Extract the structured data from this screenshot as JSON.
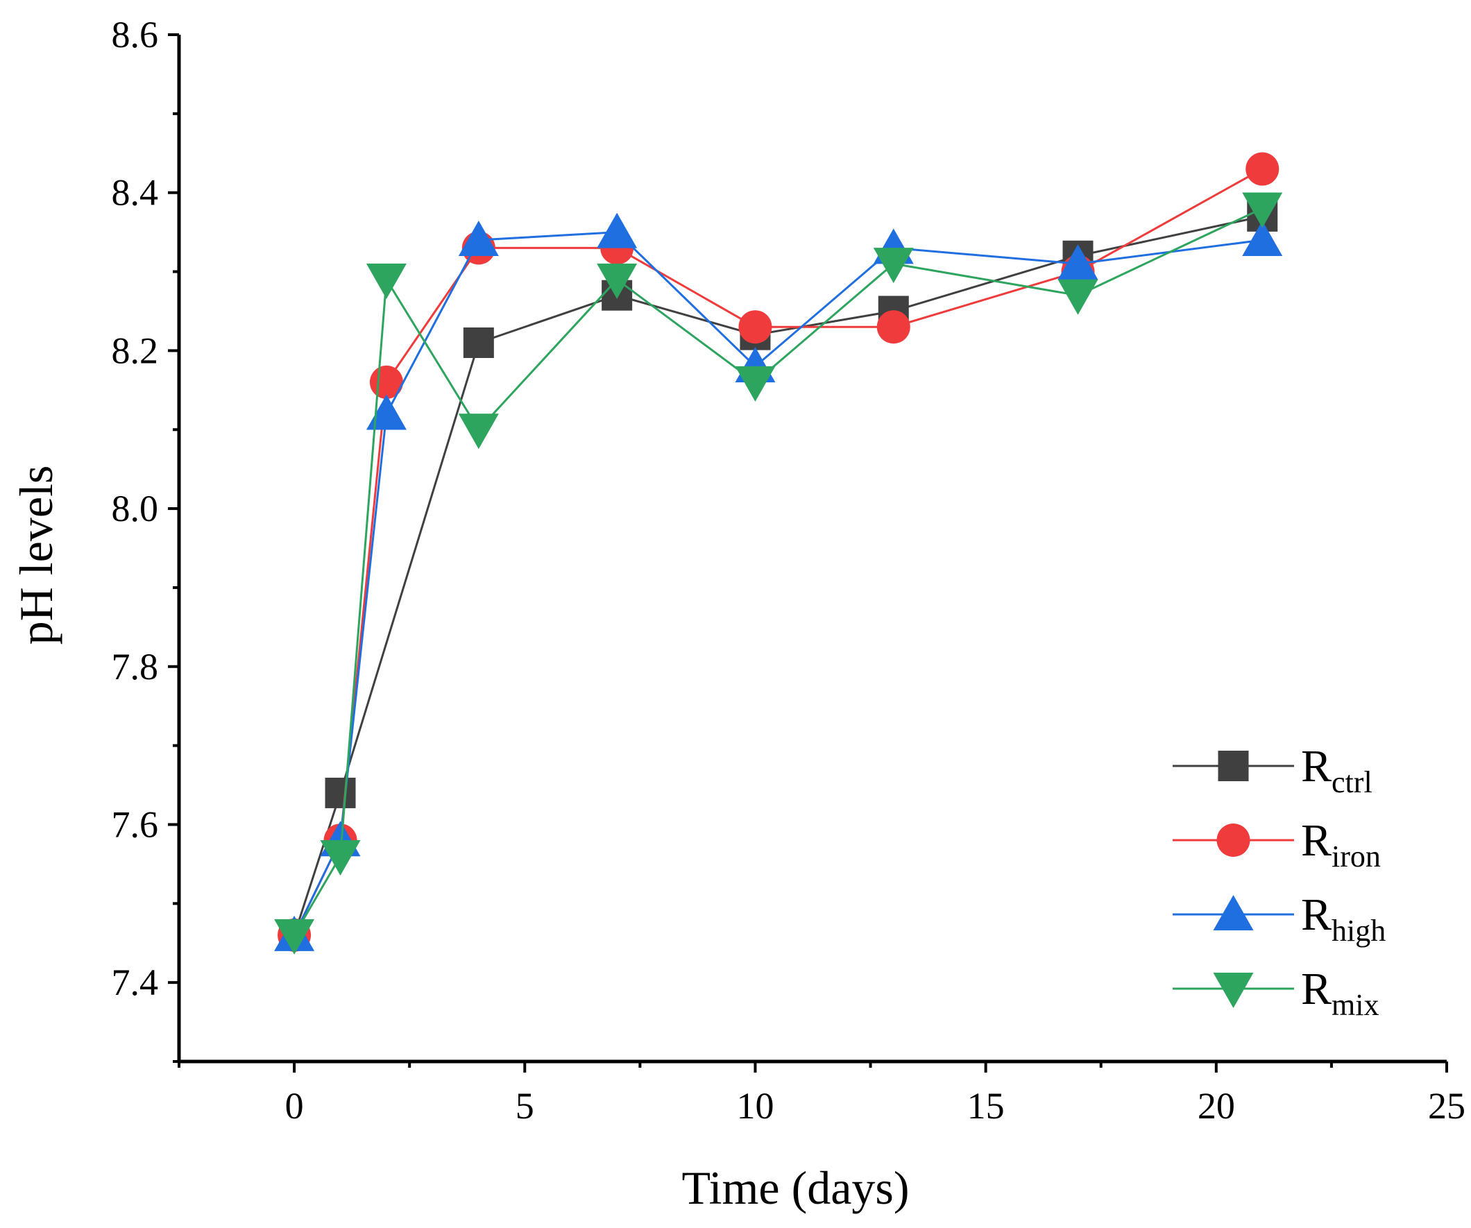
{
  "chart_data": {
    "type": "line",
    "title": "",
    "xlabel": "Time (days)",
    "ylabel": "pH levels",
    "xlim": [
      -2.5,
      25
    ],
    "ylim": [
      7.3,
      8.6
    ],
    "xticks": [
      0,
      5,
      10,
      15,
      20,
      25
    ],
    "xtick_labels": [
      "0",
      "5",
      "10",
      "15",
      "20",
      "25"
    ],
    "yticks": [
      7.4,
      7.6,
      7.8,
      8.0,
      8.2,
      8.4,
      8.6
    ],
    "ytick_labels": [
      "7.4",
      "7.6",
      "7.8",
      "8.0",
      "8.2",
      "8.4",
      "8.6"
    ],
    "grid": false,
    "legend_position": "bottom-right",
    "x": [
      0,
      1,
      2,
      4,
      7,
      10,
      13,
      17,
      21
    ],
    "series": [
      {
        "name": "R",
        "name_sub": "ctrl",
        "marker": "square",
        "color": "#404040",
        "line_color": "#404040",
        "x": [
          0,
          1,
          4,
          7,
          10,
          13,
          17,
          21
        ],
        "values": [
          7.46,
          7.64,
          8.21,
          8.27,
          8.22,
          8.25,
          8.32,
          8.37
        ]
      },
      {
        "name": "R",
        "name_sub": "iron",
        "marker": "circle",
        "color": "#ef3b3b",
        "line_color": "#ef3b3b",
        "x": [
          0,
          1,
          2,
          4,
          7,
          10,
          13,
          17,
          21
        ],
        "values": [
          7.46,
          7.58,
          8.16,
          8.33,
          8.33,
          8.23,
          8.23,
          8.3,
          8.43
        ]
      },
      {
        "name": "R",
        "name_sub": "high",
        "marker": "triangle-up",
        "color": "#1f6fe0",
        "line_color": "#1f6fe0",
        "x": [
          0,
          1,
          2,
          4,
          7,
          10,
          13,
          17,
          21
        ],
        "values": [
          7.46,
          7.58,
          8.12,
          8.34,
          8.35,
          8.18,
          8.33,
          8.31,
          8.34
        ]
      },
      {
        "name": "R",
        "name_sub": "mix",
        "marker": "triangle-down",
        "color": "#2ea55f",
        "line_color": "#2ea55f",
        "x": [
          0,
          1,
          2,
          4,
          7,
          10,
          13,
          17,
          21
        ],
        "values": [
          7.46,
          7.56,
          8.29,
          8.1,
          8.29,
          8.16,
          8.31,
          8.27,
          8.38
        ]
      }
    ]
  }
}
